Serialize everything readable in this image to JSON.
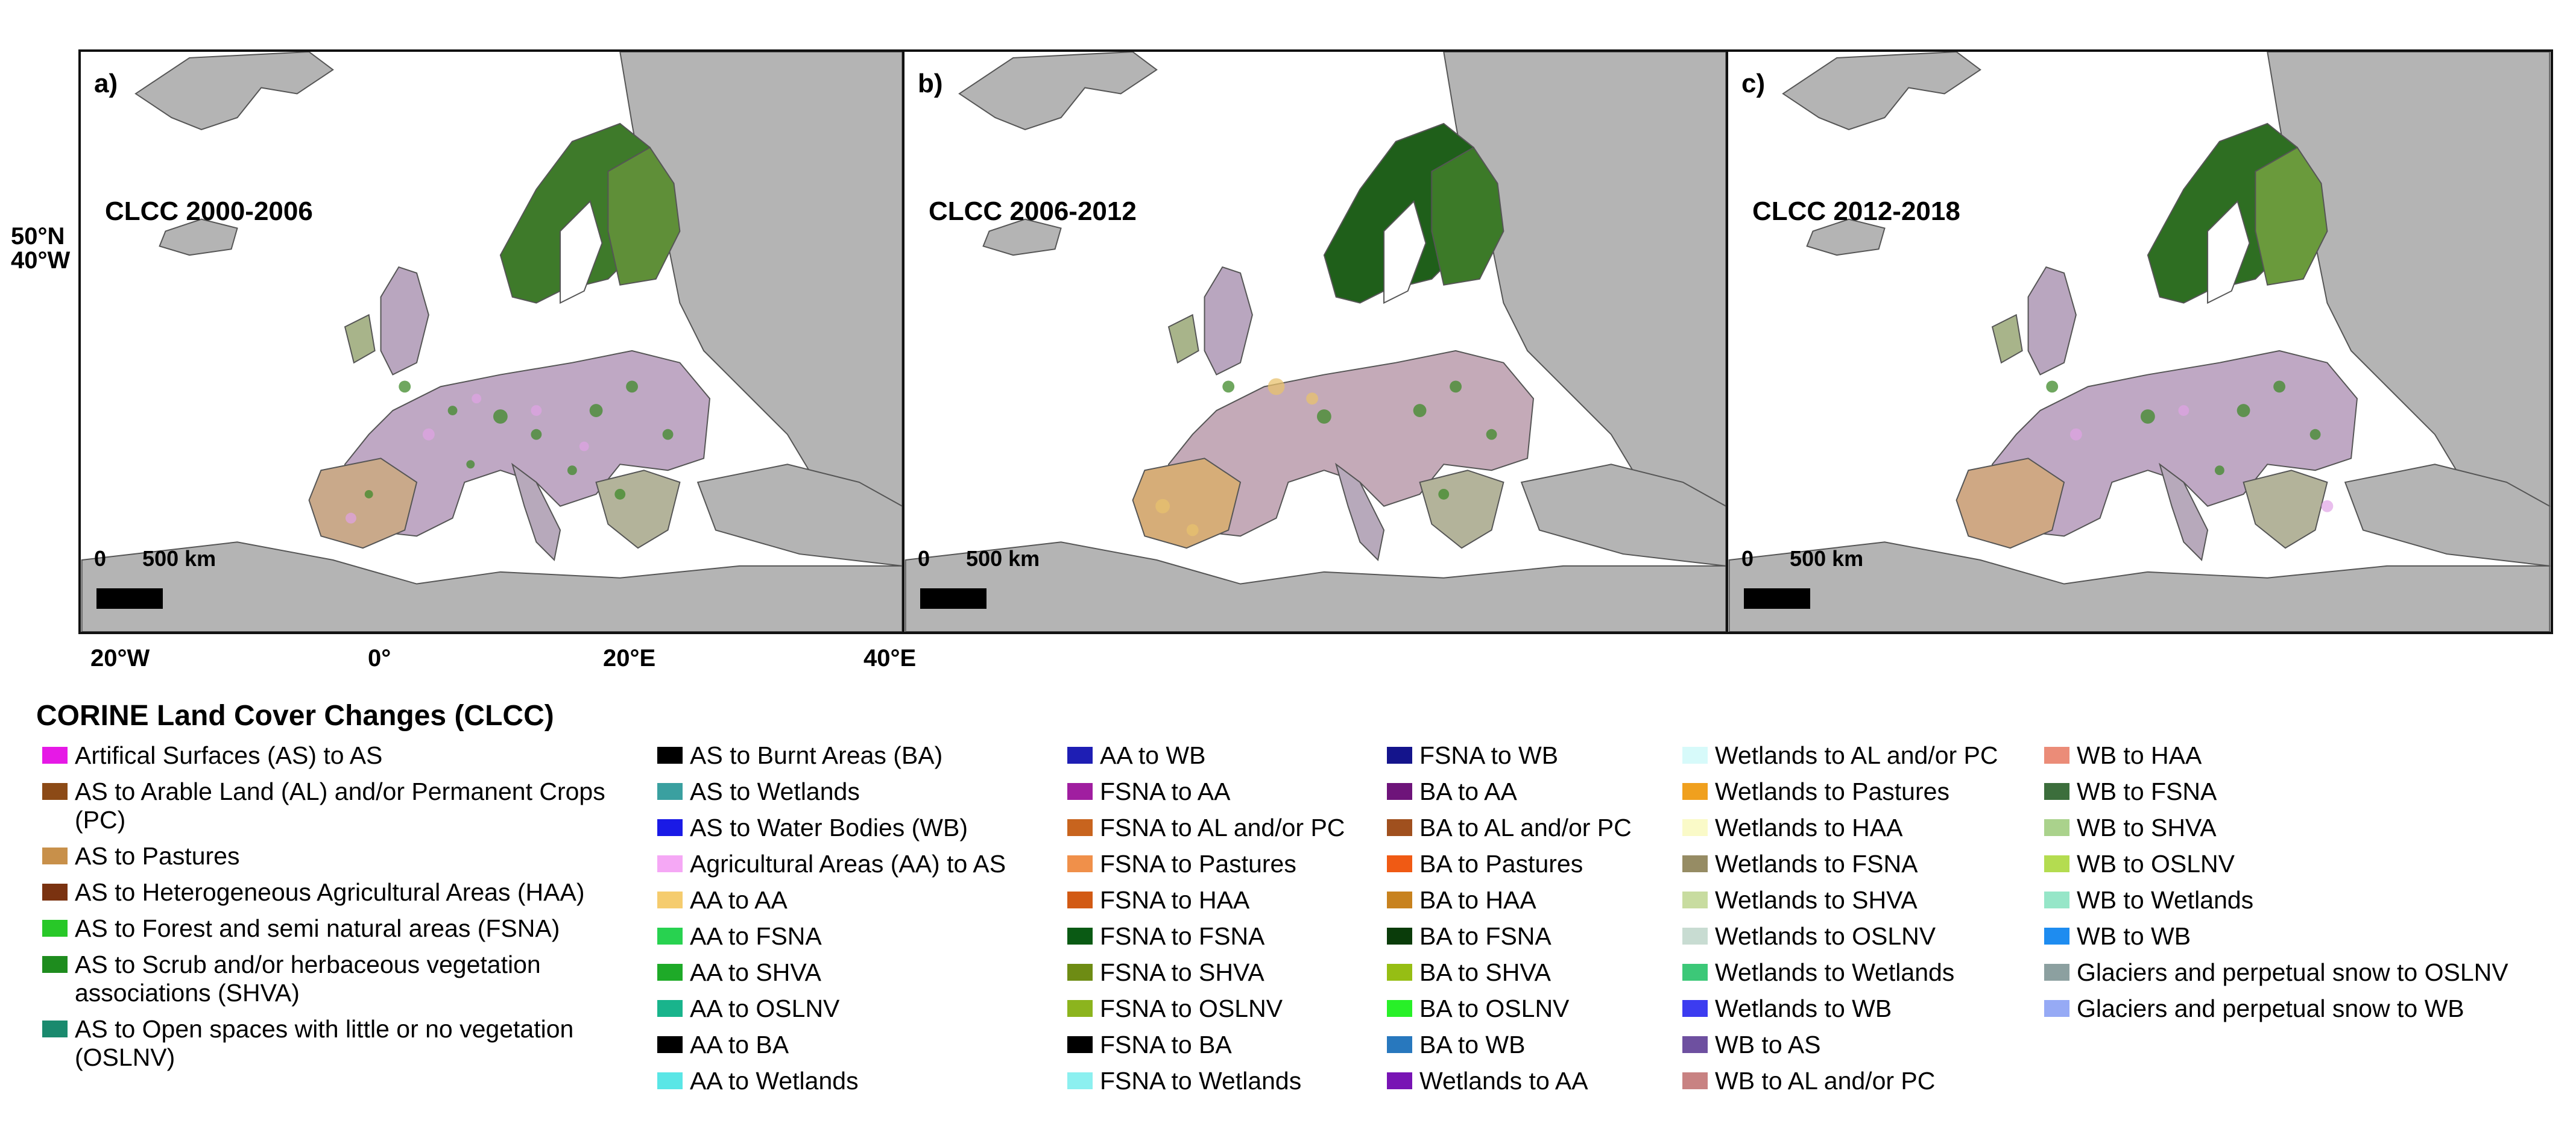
{
  "panels": [
    {
      "letter": "a)",
      "title": "CLCC 2000-2006"
    },
    {
      "letter": "b)",
      "title": "CLCC 2006-2012"
    },
    {
      "letter": "c)",
      "title": "CLCC 2012-2018"
    }
  ],
  "scale": {
    "zero": "0",
    "distance": "500 km"
  },
  "coordinate_label": {
    "lat": "50°N",
    "lon": "40°W"
  },
  "x_ticks": [
    "20°W",
    "0°",
    "20°E",
    "40°E"
  ],
  "legend": {
    "title": "CORINE Land Cover Changes (CLCC)",
    "columns": [
      [
        {
          "label": "Artifical Surfaces (AS) to AS",
          "color": "#e619e6"
        },
        {
          "label": "AS to Arable Land (AL) and/or Permanent Crops (PC)",
          "color": "#8c4a16"
        },
        {
          "label": "AS to Pastures",
          "color": "#c8904a"
        },
        {
          "label": "AS to Heterogeneous Agricultural Areas (HAA)",
          "color": "#7a3210"
        },
        {
          "label": "AS to Forest and semi natural areas (FSNA)",
          "color": "#28c828"
        },
        {
          "label": "AS to Scrub and/or herbaceous vegetation associations (SHVA)",
          "color": "#1e8c1e"
        },
        {
          "label": "AS to Open spaces with little or no vegetation (OSLNV)",
          "color": "#1a8a6e"
        }
      ],
      [
        {
          "label": "AS to Burnt Areas (BA)",
          "color": "#000000"
        },
        {
          "label": "AS to Wetlands",
          "color": "#3aa0a0"
        },
        {
          "label": "AS to Water Bodies (WB)",
          "color": "#1a1ae6"
        },
        {
          "label": "Agricultural Areas (AA) to AS",
          "color": "#f5a8f5"
        },
        {
          "label": "AA to AA",
          "color": "#f5cc6e"
        },
        {
          "label": "AA to FSNA",
          "color": "#28d250"
        },
        {
          "label": "AA to SHVA",
          "color": "#1eaa28"
        },
        {
          "label": "AA to OSLNV",
          "color": "#19b48c"
        },
        {
          "label": "AA to BA",
          "color": "#000000"
        },
        {
          "label": "AA to Wetlands",
          "color": "#5ae6e6"
        }
      ],
      [
        {
          "label": "AA to WB",
          "color": "#1e1eb4"
        },
        {
          "label": "FSNA to AA",
          "color": "#a01ea0"
        },
        {
          "label": "FSNA to AL and/or PC",
          "color": "#c8641e"
        },
        {
          "label": "FSNA to Pastures",
          "color": "#f0904a"
        },
        {
          "label": "FSNA to HAA",
          "color": "#d25a14"
        },
        {
          "label": "FSNA to FSNA",
          "color": "#0a5a14"
        },
        {
          "label": "FSNA to SHVA",
          "color": "#6e8c14"
        },
        {
          "label": "FSNA to OSLNV",
          "color": "#8cb41e"
        },
        {
          "label": "FSNA to BA",
          "color": "#000000"
        },
        {
          "label": "FSNA to Wetlands",
          "color": "#8cf0f0"
        }
      ],
      [
        {
          "label": "FSNA to WB",
          "color": "#14148c"
        },
        {
          "label": "BA to AA",
          "color": "#6e147a"
        },
        {
          "label": "BA to AL and/or PC",
          "color": "#a0501e"
        },
        {
          "label": "BA to Pastures",
          "color": "#f05a14"
        },
        {
          "label": "BA to HAA",
          "color": "#c8821e"
        },
        {
          "label": "BA to FSNA",
          "color": "#0a3c0a"
        },
        {
          "label": "BA to SHVA",
          "color": "#96be14"
        },
        {
          "label": "BA to OSLNV",
          "color": "#28f028"
        },
        {
          "label": "BA to WB",
          "color": "#2878be"
        },
        {
          "label": "Wetlands to AA",
          "color": "#7814b4"
        }
      ],
      [
        {
          "label": "Wetlands to AL and/or PC",
          "color": "#d7fafa"
        },
        {
          "label": "Wetlands to Pastures",
          "color": "#f0a01e"
        },
        {
          "label": "Wetlands to HAA",
          "color": "#fafac8"
        },
        {
          "label": "Wetlands to FSNA",
          "color": "#968c64"
        },
        {
          "label": "Wetlands to SHVA",
          "color": "#c8dca0"
        },
        {
          "label": "Wetlands to OSLNV",
          "color": "#c8dcd2"
        },
        {
          "label": "Wetlands to Wetlands",
          "color": "#3cc878"
        },
        {
          "label": "Wetlands to WB",
          "color": "#3c3cf0"
        },
        {
          "label": "WB to AS",
          "color": "#6e50a0"
        },
        {
          "label": "WB to AL and/or PC",
          "color": "#c88282"
        }
      ],
      [
        {
          "label": "WB to HAA",
          "color": "#eb8c78"
        },
        {
          "label": "WB to FSNA",
          "color": "#3c6e3c"
        },
        {
          "label": "WB to SHVA",
          "color": "#aad28c"
        },
        {
          "label": "WB to OSLNV",
          "color": "#b4dc50"
        },
        {
          "label": "WB to Wetlands",
          "color": "#96e6c8"
        },
        {
          "label": "WB to WB",
          "color": "#1e8cf0"
        },
        {
          "label": "Glaciers and perpetual snow to OSLNV",
          "color": "#8ca0a0"
        },
        {
          "label": "Glaciers and perpetual snow to WB",
          "color": "#96aaf5"
        }
      ]
    ]
  }
}
